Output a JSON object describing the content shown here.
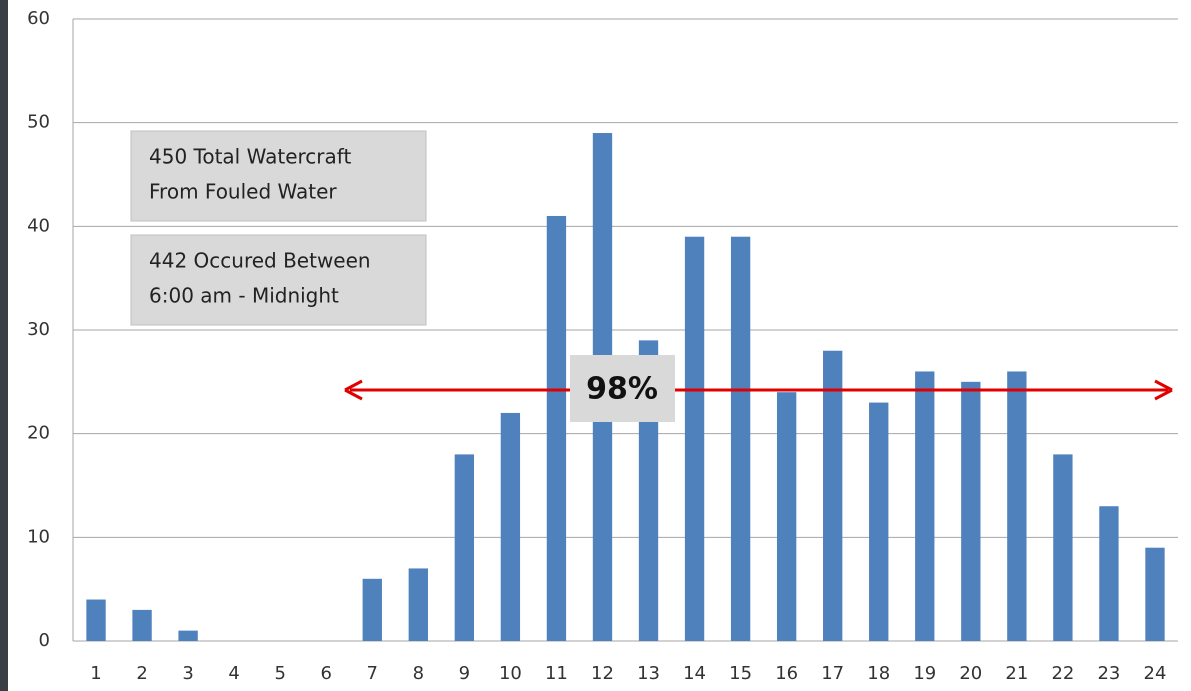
{
  "chart_data": {
    "type": "bar",
    "categories": [
      "1",
      "2",
      "3",
      "4",
      "5",
      "6",
      "7",
      "8",
      "9",
      "10",
      "11",
      "12",
      "13",
      "14",
      "15",
      "16",
      "17",
      "18",
      "19",
      "20",
      "21",
      "22",
      "23",
      "24"
    ],
    "values": [
      4,
      3,
      1,
      0,
      0,
      0,
      6,
      7,
      18,
      22,
      41,
      49,
      29,
      39,
      39,
      24,
      28,
      23,
      26,
      25,
      26,
      18,
      13,
      9
    ],
    "color": "#4f81bd",
    "ylim": [
      0,
      60
    ],
    "yticks": [
      0,
      10,
      20,
      30,
      40,
      50,
      60
    ],
    "grid": true,
    "annotations": [
      {
        "lines": [
          "450 Total Watercraft",
          "From Fouled Water"
        ]
      },
      {
        "lines": [
          "442 Occured Between",
          "6:00 am - Midnight"
        ]
      },
      {
        "lines": [
          "98%"
        ]
      }
    ]
  }
}
